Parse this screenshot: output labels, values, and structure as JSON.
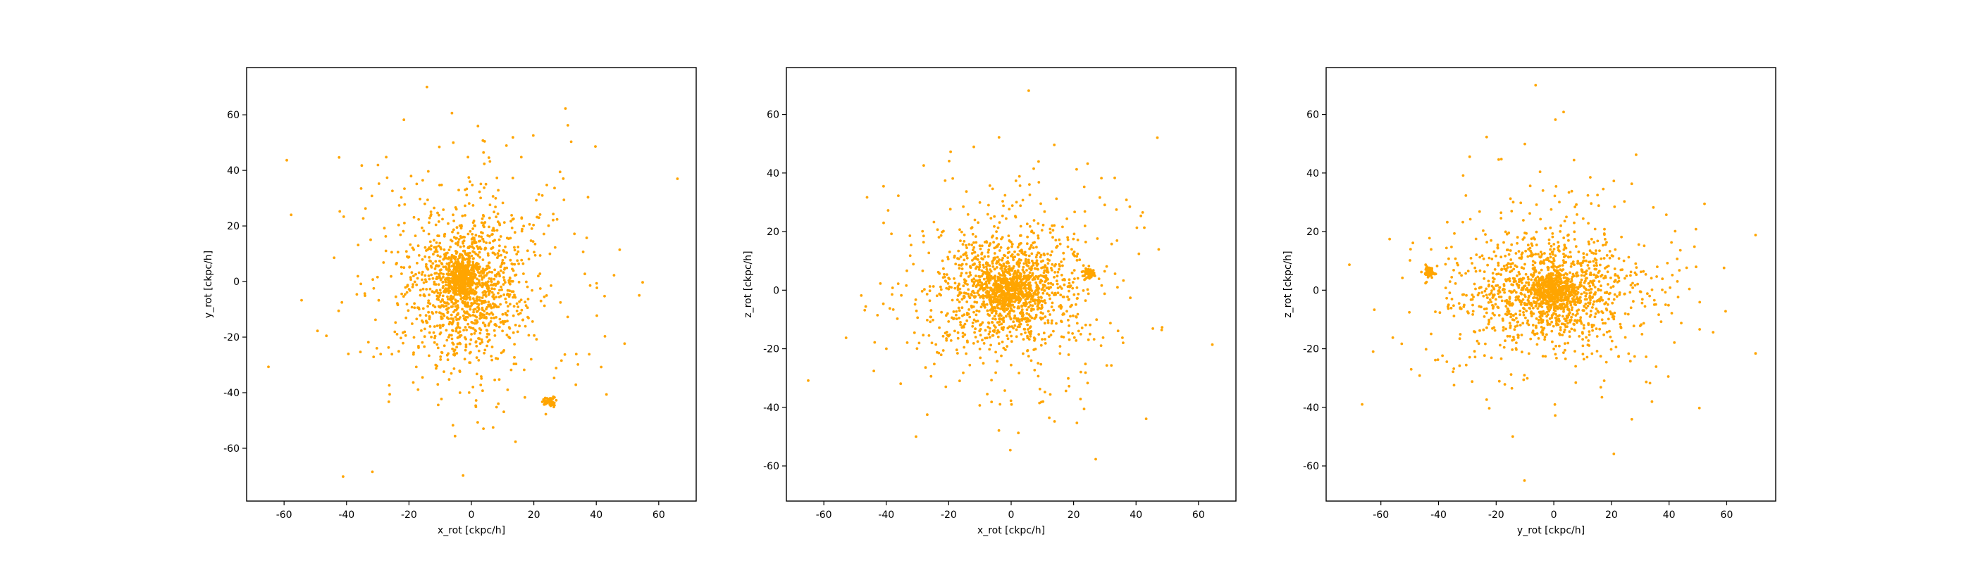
{
  "chart_data": [
    {
      "type": "scatter",
      "xlabel": "x_rot [ckpc/h]",
      "ylabel": "y_rot [ckpc/h]",
      "xlim": [
        -72,
        72
      ],
      "ylim": [
        -79,
        77
      ],
      "xticks": [
        -60,
        -40,
        -20,
        0,
        20,
        40,
        60
      ],
      "yticks": [
        -60,
        -40,
        -20,
        0,
        20,
        40,
        60
      ],
      "color": "#ffa500",
      "grid": false,
      "points": {
        "core": {
          "center": [
            -3,
            1
          ],
          "spread": [
            3,
            3.5
          ],
          "count": 360
        },
        "disk": {
          "center": [
            -1,
            -1
          ],
          "spread": [
            9,
            13
          ],
          "count": 950
        },
        "halo": {
          "center": [
            0,
            0
          ],
          "spread": [
            22,
            26
          ],
          "count": 380
        },
        "satellite": {
          "center": [
            25,
            -43
          ],
          "spread": [
            1,
            0.8
          ],
          "count": 55
        },
        "extent": {
          "x": [
            -65,
            66
          ],
          "y": [
            -72,
            70
          ]
        }
      }
    },
    {
      "type": "scatter",
      "xlabel": "x_rot [ckpc/h]",
      "ylabel": "z_rot [ckpc/h]",
      "xlim": [
        -72,
        72
      ],
      "ylim": [
        -72,
        76
      ],
      "xticks": [
        -60,
        -40,
        -20,
        0,
        20,
        40,
        60
      ],
      "yticks": [
        -60,
        -40,
        -20,
        0,
        20,
        40,
        60
      ],
      "color": "#ffa500",
      "grid": false,
      "points": {
        "core": {
          "center": [
            -1,
            0
          ],
          "spread": [
            4,
            3.5
          ],
          "count": 360
        },
        "disk": {
          "center": [
            -1,
            0
          ],
          "spread": [
            11,
            10
          ],
          "count": 950
        },
        "halo": {
          "center": [
            0,
            0
          ],
          "spread": [
            22,
            20
          ],
          "count": 380
        },
        "satellite": {
          "center": [
            25,
            6
          ],
          "spread": [
            0.9,
            1
          ],
          "count": 55
        },
        "extent": {
          "x": [
            -65,
            66
          ],
          "y": [
            -65,
            70
          ]
        }
      }
    },
    {
      "type": "scatter",
      "xlabel": "y_rot [ckpc/h]",
      "ylabel": "z_rot [ckpc/h]",
      "xlim": [
        -79,
        77
      ],
      "ylim": [
        -72,
        76
      ],
      "xticks": [
        -60,
        -40,
        -20,
        0,
        20,
        40,
        60
      ],
      "yticks": [
        -60,
        -40,
        -20,
        0,
        20,
        40,
        60
      ],
      "color": "#ffa500",
      "grid": false,
      "points": {
        "core": {
          "center": [
            0,
            0
          ],
          "spread": [
            4,
            3
          ],
          "count": 360
        },
        "disk": {
          "center": [
            -2,
            -1
          ],
          "spread": [
            15,
            9
          ],
          "count": 950
        },
        "halo": {
          "center": [
            0,
            0
          ],
          "spread": [
            26,
            20
          ],
          "count": 380
        },
        "satellite": {
          "center": [
            -43,
            6
          ],
          "spread": [
            0.8,
            1
          ],
          "count": 55
        },
        "extent": {
          "x": [
            -72,
            70
          ],
          "y": [
            -65,
            70
          ]
        }
      }
    }
  ]
}
